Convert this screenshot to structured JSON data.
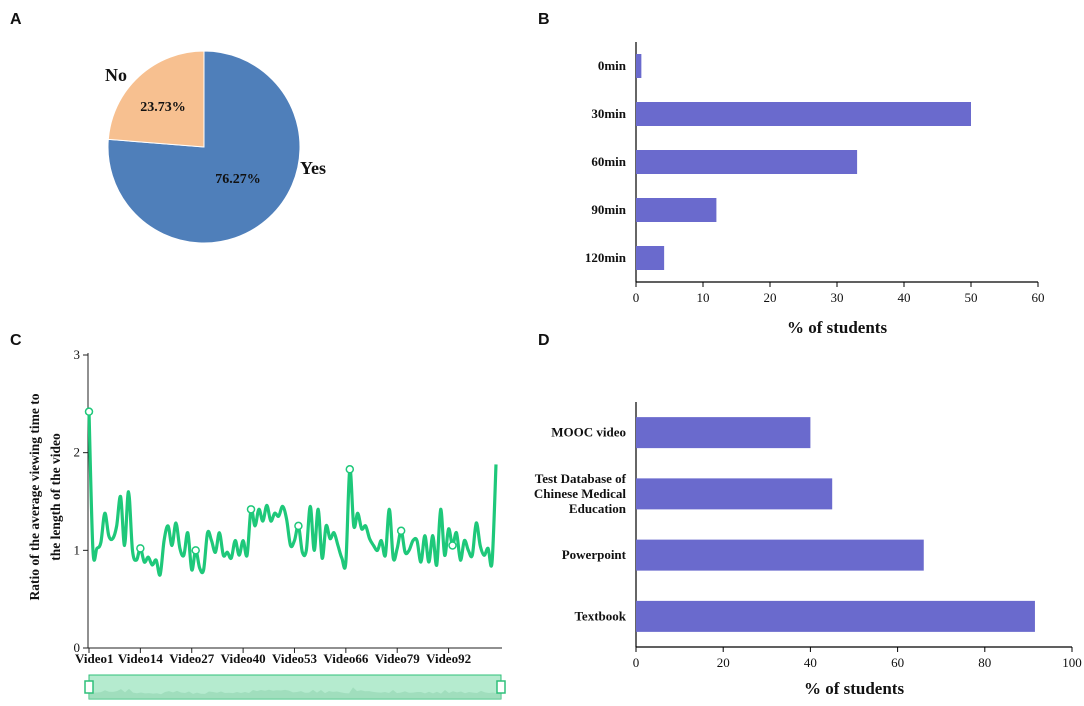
{
  "panels": {
    "a": "A",
    "b": "B",
    "c": "C",
    "d": "D"
  },
  "colors": {
    "pie_yes": "#4f7fba",
    "pie_no": "#f7c090",
    "bar": "#6a6acd",
    "line": "#1ec87a",
    "slider_fill": "#b5ebcf",
    "slider_stroke": "#2fc07a"
  },
  "chart_data": [
    {
      "id": "A",
      "type": "pie",
      "labels": [
        "Yes",
        "No"
      ],
      "values": [
        76.27,
        23.73
      ],
      "value_labels": [
        "76.27%",
        "23.73%"
      ],
      "title": ""
    },
    {
      "id": "B",
      "type": "bar",
      "orientation": "horizontal",
      "categories": [
        "0min",
        "30min",
        "60min",
        "90min",
        "120min"
      ],
      "values": [
        0.8,
        50,
        33,
        12,
        4.2
      ],
      "xlabel": "% of students",
      "xlim": [
        0,
        60
      ],
      "xticks": [
        "0",
        "10",
        "20",
        "30",
        "40",
        "50",
        "60"
      ]
    },
    {
      "id": "C",
      "type": "line",
      "ylabel": "Ratio of the average viewing time to the length of the video",
      "ylim": [
        0,
        3
      ],
      "yticks": [
        "0",
        "1",
        "2",
        "3"
      ],
      "xticks": [
        "Video1",
        "Video14",
        "Video27",
        "Video40",
        "Video53",
        "Video66",
        "Video79",
        "Video92"
      ],
      "x_count": 104,
      "values": [
        2.42,
        1.0,
        1.02,
        1.08,
        1.38,
        1.15,
        1.12,
        1.25,
        1.55,
        1.05,
        1.6,
        1.0,
        0.9,
        1.02,
        0.88,
        0.93,
        0.85,
        0.9,
        0.75,
        1.1,
        1.25,
        1.05,
        1.28,
        1.02,
        0.95,
        1.18,
        0.8,
        1.0,
        0.82,
        0.8,
        1.18,
        1.1,
        0.98,
        1.18,
        0.95,
        0.98,
        0.92,
        1.1,
        0.95,
        1.1,
        0.95,
        1.42,
        1.25,
        1.42,
        1.3,
        1.46,
        1.3,
        1.38,
        1.35,
        1.45,
        1.32,
        1.05,
        1.1,
        1.25,
        0.98,
        1.0,
        1.45,
        1.0,
        1.42,
        0.92,
        1.25,
        1.12,
        1.18,
        1.05,
        0.92,
        0.88,
        1.83,
        1.25,
        1.38,
        1.22,
        1.25,
        1.12,
        1.05,
        1.0,
        1.1,
        0.95,
        1.42,
        0.92,
        1.02,
        1.2,
        0.98,
        1.0,
        1.1,
        1.1,
        0.88,
        1.15,
        0.88,
        1.15,
        0.85,
        1.42,
        0.95,
        1.22,
        1.05,
        1.18,
        0.9,
        1.1,
        1.0,
        0.95,
        1.28,
        1.05,
        0.95,
        1.02,
        0.88,
        1.88
      ],
      "markers": [
        0,
        13,
        27,
        41,
        53,
        66,
        79,
        92
      ]
    },
    {
      "id": "D",
      "type": "bar",
      "orientation": "horizontal",
      "categories": [
        [
          "MOOC video"
        ],
        [
          "Test Database of",
          "Chinese Medical",
          "Education"
        ],
        [
          "Powerpoint"
        ],
        [
          "Textbook"
        ]
      ],
      "values": [
        40,
        45,
        66,
        91.5
      ],
      "xlabel": "% of students",
      "xlim": [
        0,
        100
      ],
      "xticks": [
        "0",
        "20",
        "40",
        "60",
        "80",
        "100"
      ]
    }
  ]
}
